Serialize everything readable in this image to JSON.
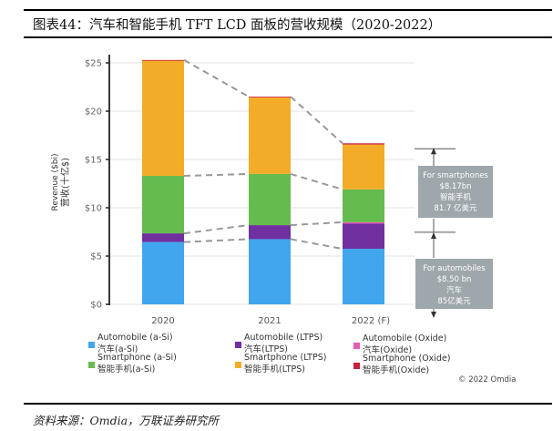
{
  "figure": {
    "title": "图表44：汽车和智能手机 TFT LCD 面板的营收规模（2020-2022）",
    "source": "资料来源：Omdia，万联证券研究所",
    "copyright": "© 2022 Omdia"
  },
  "chart_data": {
    "type": "bar",
    "stacked": true,
    "title": "",
    "xlabel": "",
    "ylabel": "Revenue ($bi)",
    "ylabel_cn": "营收(十亿$)",
    "categories": [
      "2020",
      "2021",
      "2022 (F)"
    ],
    "ylim": [
      0,
      25
    ],
    "yticks": [
      0,
      5,
      10,
      15,
      20,
      25
    ],
    "ytick_labels": [
      "$0",
      "$5",
      "$10",
      "$15",
      "$20",
      "$25"
    ],
    "grid": true,
    "series": [
      {
        "name": "Automobile (a-Si)",
        "name_cn": "汽车(a-Si)",
        "color": "#41A6EE",
        "values": [
          6.45,
          6.75,
          5.75
        ]
      },
      {
        "name": "Automobile (LTPS)",
        "name_cn": "汽车(LTPS)",
        "color": "#7030A0",
        "values": [
          0.9,
          1.45,
          2.6
        ]
      },
      {
        "name": "Automobile (Oxide)",
        "name_cn": "汽车(Oxide)",
        "color": "#E55CB4",
        "values": [
          0,
          0,
          0.15
        ]
      },
      {
        "name": "Smartphone (a-Si)",
        "name_cn": "智能手机(a-Si)",
        "color": "#66BB4F",
        "values": [
          5.95,
          5.3,
          3.4
        ]
      },
      {
        "name": "Smartphone (LTPS)",
        "name_cn": "智能手机(LTPS)",
        "color": "#F2AC28",
        "values": [
          11.95,
          7.95,
          4.65
        ]
      },
      {
        "name": "Smartphone (Oxide)",
        "name_cn": "智能手机(Oxide)",
        "color": "#C8203B",
        "values": [
          0.05,
          0.05,
          0.12
        ]
      }
    ],
    "legend": {
      "placement": "bottom",
      "columns": [
        {
          "header": "2020",
          "items": [
            0,
            3
          ]
        },
        {
          "header": "2021",
          "items": [
            1,
            4
          ]
        },
        {
          "header": "2022 (F)",
          "items": [
            2,
            5
          ]
        }
      ]
    },
    "annotations": [
      {
        "target": "smartphones-2022",
        "lines": [
          "For smartphones",
          "$8.17bn",
          "智能手机",
          "81.7 亿美元"
        ],
        "value": 8.17
      },
      {
        "target": "automobiles-2022",
        "lines": [
          "For automobiles",
          "$8.50 bn",
          "汽车",
          "85亿美元"
        ],
        "value": 8.5
      }
    ],
    "connector_lines": "dashed grey lines connecting totals, smartphone base, automobile top and automobile a-Si top across years"
  }
}
